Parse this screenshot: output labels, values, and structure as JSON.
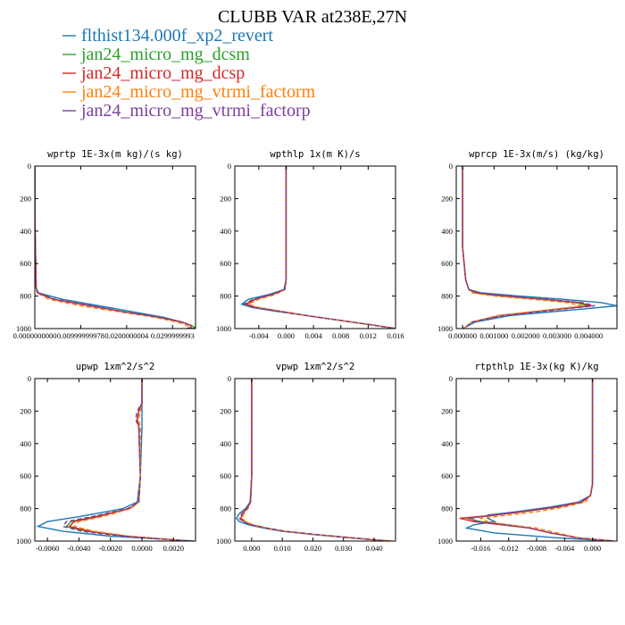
{
  "title": "CLUBB VAR at238E,27N",
  "legend": [
    {
      "name": "flthist134.000f_xp2_revert",
      "color": "#1f77b4"
    },
    {
      "name": "jan24_micro_mg_dcsm",
      "color": "#2ca02c"
    },
    {
      "name": "jan24_micro_mg_dcsp",
      "color": "#d62728"
    },
    {
      "name": "jan24_micro_mg_vtrmi_factorm",
      "color": "#ff7f0e"
    },
    {
      "name": "jan24_micro_mg_vtrmi_factorp",
      "color": "#7b3f9e"
    }
  ],
  "chart_data": [
    {
      "type": "line",
      "title": "wprtp  1E-3x(m kg)/(s kg)",
      "xlim": [
        0,
        0.035
      ],
      "ylim": [
        1000,
        0
      ],
      "xticks": [
        "0.0000000000",
        "0.00999999978",
        "0.0200000004",
        "0.0299999993"
      ],
      "xtick_values": [
        0,
        0.01,
        0.02,
        0.03
      ],
      "yticks": [
        "0",
        "200",
        "400",
        "600",
        "800",
        "1000"
      ],
      "ytick_values": [
        0,
        200,
        400,
        600,
        800,
        1000
      ],
      "y": [
        0,
        300,
        600,
        750,
        780,
        820,
        860,
        900,
        930,
        960,
        980,
        995,
        1000
      ],
      "series": [
        {
          "values": [
            0,
            0,
            0.0002,
            0.0003,
            0.0008,
            0.006,
            0.014,
            0.022,
            0.028,
            0.032,
            0.034,
            0.034,
            0.033
          ]
        },
        {
          "values": [
            0,
            0,
            0.0002,
            0.0003,
            0.0006,
            0.004,
            0.012,
            0.02,
            0.027,
            0.032,
            0.034,
            0.035,
            0.034
          ]
        },
        {
          "values": [
            0,
            0,
            0.0002,
            0.0003,
            0.0006,
            0.004,
            0.012,
            0.02,
            0.027,
            0.032,
            0.034,
            0.034,
            0.033
          ]
        },
        {
          "values": [
            0,
            0,
            0.0002,
            0.0003,
            0.0005,
            0.003,
            0.01,
            0.019,
            0.026,
            0.031,
            0.033,
            0.034,
            0.033
          ]
        },
        {
          "values": [
            0,
            0,
            0.0002,
            0.0003,
            0.0006,
            0.0045,
            0.0125,
            0.02,
            0.027,
            0.032,
            0.034,
            0.034,
            0.033
          ]
        }
      ]
    },
    {
      "type": "line",
      "title": "wpthlp  1x(m K)/s",
      "xlim": [
        -0.0075,
        0.016
      ],
      "ylim": [
        1000,
        0
      ],
      "xticks": [
        "-0.004",
        "0.000",
        "0.004",
        "0.008",
        "0.012",
        "0.016"
      ],
      "xtick_values": [
        -0.004,
        0,
        0.004,
        0.008,
        0.012,
        0.016
      ],
      "yticks": [
        "0",
        "200",
        "400",
        "600",
        "800",
        "1000"
      ],
      "ytick_values": [
        0,
        200,
        400,
        600,
        800,
        1000
      ],
      "y": [
        0,
        700,
        760,
        790,
        820,
        850,
        870,
        890,
        920,
        950,
        980,
        1000
      ],
      "series": [
        {
          "values": [
            0,
            0,
            -0.0003,
            -0.0025,
            -0.0055,
            -0.0065,
            -0.005,
            -0.002,
            0.003,
            0.008,
            0.013,
            0.016
          ]
        },
        {
          "values": [
            0,
            0,
            -0.0002,
            -0.002,
            -0.0045,
            -0.006,
            -0.0045,
            -0.0015,
            0.003,
            0.008,
            0.013,
            0.016
          ]
        },
        {
          "values": [
            0,
            0,
            -0.0002,
            -0.002,
            -0.0045,
            -0.0058,
            -0.0045,
            -0.0015,
            0.003,
            0.008,
            0.013,
            0.016
          ]
        },
        {
          "values": [
            0,
            0,
            -0.0002,
            -0.0015,
            -0.004,
            -0.0055,
            -0.004,
            -0.0012,
            0.003,
            0.008,
            0.013,
            0.016
          ]
        },
        {
          "values": [
            0,
            0,
            -0.0002,
            -0.002,
            -0.0048,
            -0.0062,
            -0.0046,
            -0.0015,
            0.003,
            0.008,
            0.013,
            0.016
          ]
        }
      ]
    },
    {
      "type": "line",
      "title": "wprcp  1E-3x(m/s) (kg/kg)",
      "xlim": [
        -0.0002,
        0.0049
      ],
      "ylim": [
        1000,
        0
      ],
      "xticks": [
        "0.000000",
        "0.001000",
        "0.002000",
        "0.003000",
        "0.004000"
      ],
      "xtick_values": [
        0,
        0.001,
        0.002,
        0.003,
        0.004
      ],
      "yticks": [
        "0",
        "200",
        "400",
        "600",
        "800",
        "1000"
      ],
      "ytick_values": [
        0,
        200,
        400,
        600,
        800,
        1000
      ],
      "y": [
        0,
        500,
        700,
        760,
        780,
        800,
        820,
        840,
        860,
        880,
        920,
        960,
        990,
        1000
      ],
      "series": [
        {
          "values": [
            0,
            0,
            0.0001,
            0.0002,
            0.0006,
            0.0018,
            0.0032,
            0.0044,
            0.0049,
            0.0038,
            0.0015,
            0.0004,
            0.0001,
            0
          ]
        },
        {
          "values": [
            0,
            0,
            0.0001,
            0.0002,
            0.0004,
            0.0012,
            0.0025,
            0.0036,
            0.004,
            0.003,
            0.0012,
            0.0003,
            0.0001,
            0
          ]
        },
        {
          "values": [
            0,
            0,
            0.0001,
            0.0002,
            0.0004,
            0.0013,
            0.0026,
            0.0037,
            0.0041,
            0.0031,
            0.0012,
            0.0003,
            0.0001,
            0
          ]
        },
        {
          "values": [
            0,
            0,
            0.0001,
            0.0002,
            0.0003,
            0.001,
            0.0022,
            0.0033,
            0.0038,
            0.0029,
            0.0011,
            0.0003,
            0.0001,
            0
          ]
        },
        {
          "values": [
            0,
            0,
            0.0001,
            0.0002,
            0.0005,
            0.0014,
            0.0027,
            0.0038,
            0.0042,
            0.0032,
            0.0013,
            0.0003,
            0.0001,
            0
          ]
        }
      ]
    },
    {
      "type": "line",
      "title": "upwp  1xm^2/s^2",
      "xlim": [
        -0.0068,
        0.0034
      ],
      "ylim": [
        1000,
        0
      ],
      "xticks": [
        "-0.0060",
        "-0.0040",
        "-0.0020",
        "0.0000",
        "0.0020"
      ],
      "xtick_values": [
        -0.006,
        -0.004,
        -0.002,
        0,
        0.002
      ],
      "yticks": [
        "0",
        "200",
        "400",
        "600",
        "800",
        "1000"
      ],
      "ytick_values": [
        0,
        200,
        400,
        600,
        800,
        1000
      ],
      "y": [
        0,
        150,
        200,
        250,
        300,
        600,
        760,
        800,
        850,
        880,
        910,
        940,
        970,
        1000
      ],
      "series": [
        {
          "values": [
            0,
            0,
            0,
            0,
            0,
            -0.0001,
            -0.0003,
            -0.0012,
            -0.004,
            -0.006,
            -0.0066,
            -0.005,
            -0.002,
            0.0033
          ]
        },
        {
          "values": [
            0,
            0,
            -0.0002,
            -0.0003,
            -0.0002,
            -0.0001,
            -0.0002,
            -0.0008,
            -0.003,
            -0.0045,
            -0.0048,
            -0.0035,
            -0.001,
            0.003
          ]
        },
        {
          "values": [
            0,
            0,
            -0.0002,
            -0.0003,
            -0.0002,
            -0.0001,
            -0.0002,
            -0.0008,
            -0.0028,
            -0.0043,
            -0.0046,
            -0.0033,
            -0.001,
            0.003
          ]
        },
        {
          "values": [
            0,
            0,
            -0.0001,
            -0.0002,
            -0.0001,
            -0.0001,
            -0.0002,
            -0.0007,
            -0.0025,
            -0.004,
            -0.0043,
            -0.003,
            -0.0008,
            0.0028
          ]
        },
        {
          "values": [
            0,
            0,
            -0.0003,
            -0.0004,
            -0.0002,
            -0.0001,
            -0.0002,
            -0.0009,
            -0.0032,
            -0.0048,
            -0.005,
            -0.0038,
            -0.0012,
            0.0031
          ]
        }
      ]
    },
    {
      "type": "line",
      "title": "vpwp  1xm^2/s^2",
      "xlim": [
        -0.0055,
        0.047
      ],
      "ylim": [
        1000,
        0
      ],
      "xticks": [
        "0.000",
        "0.010",
        "0.020",
        "0.030",
        "0.040"
      ],
      "xtick_values": [
        0,
        0.01,
        0.02,
        0.03,
        0.04
      ],
      "yticks": [
        "0",
        "200",
        "400",
        "600",
        "800",
        "1000"
      ],
      "ytick_values": [
        0,
        200,
        400,
        600,
        800,
        1000
      ],
      "y": [
        0,
        600,
        760,
        800,
        830,
        860,
        880,
        900,
        920,
        940,
        960,
        980,
        1000
      ],
      "series": [
        {
          "values": [
            0,
            0,
            -0.0005,
            -0.002,
            -0.004,
            -0.005,
            -0.004,
            -0.001,
            0.004,
            0.01,
            0.02,
            0.032,
            0.045
          ]
        },
        {
          "values": [
            0,
            0,
            -0.0004,
            -0.0015,
            -0.003,
            -0.0035,
            -0.0025,
            0.0,
            0.005,
            0.011,
            0.021,
            0.033,
            0.045
          ]
        },
        {
          "values": [
            0,
            0,
            -0.0004,
            -0.0015,
            -0.003,
            -0.0035,
            -0.0025,
            0.0,
            0.005,
            0.011,
            0.021,
            0.033,
            0.045
          ]
        },
        {
          "values": [
            0,
            0,
            -0.0003,
            -0.0012,
            -0.0025,
            -0.003,
            -0.002,
            0.0005,
            0.005,
            0.011,
            0.021,
            0.033,
            0.046
          ]
        },
        {
          "values": [
            0,
            0,
            -0.0004,
            -0.0016,
            -0.0032,
            -0.004,
            -0.0028,
            -0.0002,
            0.0048,
            0.011,
            0.021,
            0.033,
            0.045
          ]
        }
      ]
    },
    {
      "type": "line",
      "title": "rtpthlp  1E-3x(kg K)/kg",
      "xlim": [
        -0.0195,
        0.0035
      ],
      "ylim": [
        1000,
        0
      ],
      "xticks": [
        "-0.016",
        "-0.012",
        "-0.008",
        "-0.004",
        "0.000"
      ],
      "xtick_values": [
        -0.016,
        -0.012,
        -0.008,
        -0.004,
        0
      ],
      "yticks": [
        "0",
        "200",
        "400",
        "600",
        "800",
        "1000"
      ],
      "ytick_values": [
        0,
        200,
        400,
        600,
        800,
        1000
      ],
      "y": [
        0,
        650,
        720,
        760,
        790,
        820,
        840,
        860,
        880,
        900,
        920,
        950,
        980,
        1000
      ],
      "series": [
        {
          "values": [
            0,
            0,
            -0.0003,
            -0.002,
            -0.006,
            -0.011,
            -0.015,
            -0.015,
            -0.014,
            -0.017,
            -0.018,
            -0.014,
            -0.005,
            0.003
          ]
        },
        {
          "values": [
            0,
            0,
            -0.0003,
            -0.0015,
            -0.005,
            -0.01,
            -0.014,
            -0.018,
            -0.016,
            -0.012,
            -0.009,
            -0.006,
            -0.002,
            0.003
          ]
        },
        {
          "values": [
            0,
            0,
            -0.0003,
            -0.0015,
            -0.005,
            -0.01,
            -0.014,
            -0.019,
            -0.017,
            -0.013,
            -0.009,
            -0.006,
            -0.002,
            0.003
          ]
        },
        {
          "values": [
            0,
            0,
            -0.0003,
            -0.001,
            -0.004,
            -0.008,
            -0.012,
            -0.016,
            -0.015,
            -0.012,
            -0.008,
            -0.005,
            -0.002,
            0.003
          ]
        },
        {
          "values": [
            0,
            0,
            -0.0003,
            -0.0018,
            -0.0055,
            -0.0105,
            -0.0145,
            -0.0175,
            -0.0165,
            -0.0125,
            -0.009,
            -0.006,
            -0.002,
            0.003
          ]
        }
      ]
    }
  ]
}
